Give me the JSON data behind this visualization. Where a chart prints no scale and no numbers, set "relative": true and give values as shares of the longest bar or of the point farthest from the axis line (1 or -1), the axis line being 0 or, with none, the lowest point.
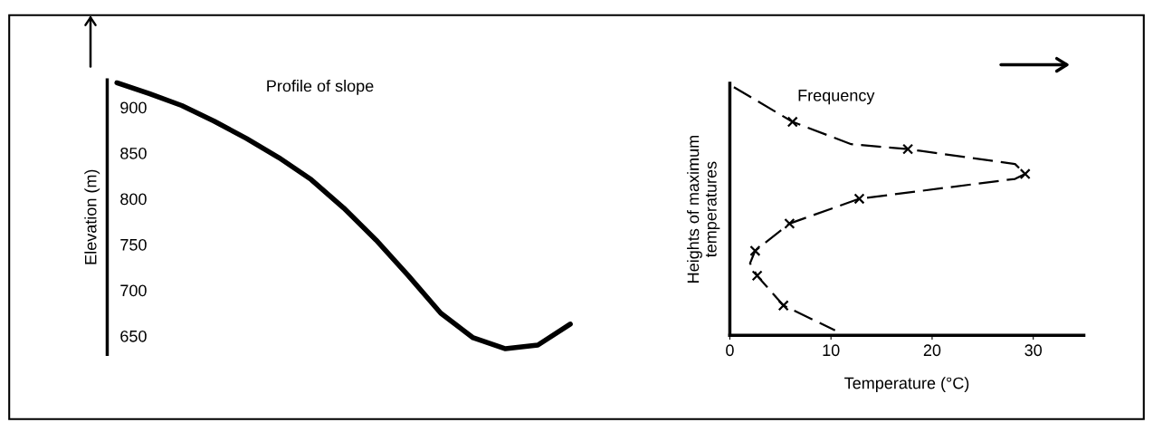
{
  "chart_data": [
    {
      "type": "line",
      "title": "Profile of slope",
      "ylabel": "Elevation (m)",
      "tick_labels": "y",
      "categories": [
        null,
        null,
        null,
        null,
        null,
        null,
        null,
        null,
        null,
        null,
        null,
        null,
        null,
        null,
        null
      ],
      "series": [
        {
          "color": "#000000",
          "values": [
            927,
            915,
            902,
            885,
            866,
            845,
            821,
            790,
            755,
            716,
            675,
            648,
            636,
            640,
            663
          ]
        }
      ],
      "ylim": [
        630,
        930
      ],
      "yticks": [
        650,
        700,
        750,
        800,
        850,
        900
      ],
      "grid": false,
      "legend": false
    },
    {
      "type": "line",
      "title": "Frequency",
      "xlabel": "Temperature (°C)",
      "ylabel": "Heights of maximum\ntemperatures",
      "tick_labels": "x",
      "relative": true,
      "series": [
        {
          "color": "#000000",
          "line_style": "dashed",
          "marker": "none",
          "x": [
            0.4,
            6.2,
            12.0,
            17.6,
            28.2,
            29.2,
            28.2,
            12.8,
            5.9,
            2.5,
            2.0,
            2.7,
            5.3,
            10.4
          ],
          "values": [
            1.0,
            0.86,
            0.77,
            0.75,
            0.69,
            0.65,
            0.63,
            0.55,
            0.45,
            0.34,
            0.29,
            0.24,
            0.12,
            0.02
          ]
        },
        {
          "type": "scatter",
          "color": "#000000",
          "marker": "cross",
          "x": [
            6.2,
            17.6,
            29.2,
            12.8,
            5.9,
            2.5,
            2.7,
            5.3
          ],
          "values": [
            0.86,
            0.75,
            0.65,
            0.55,
            0.45,
            0.34,
            0.24,
            0.12
          ]
        }
      ],
      "xlim": [
        0,
        35
      ],
      "xticks": [
        0,
        10,
        20,
        30
      ],
      "grid": false,
      "legend": false
    }
  ]
}
